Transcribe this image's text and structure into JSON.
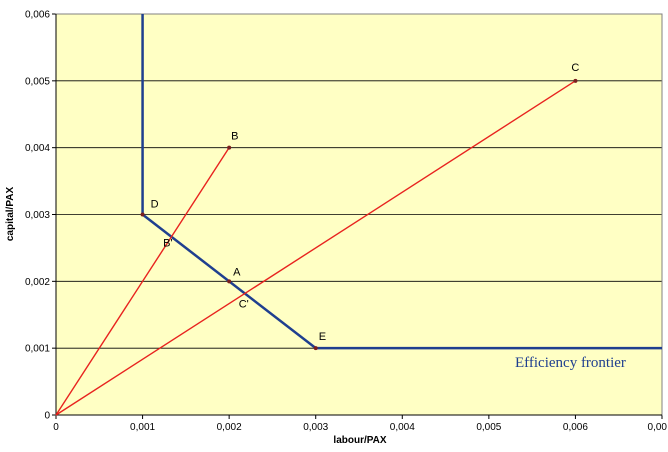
{
  "chart_data": {
    "type": "line",
    "xlabel": "labour/PAX",
    "ylabel": "capital/PAX",
    "xlim": [
      0,
      0.007
    ],
    "ylim": [
      0,
      0.006
    ],
    "x_ticks": [
      "0",
      "0,001",
      "0,002",
      "0,003",
      "0,004",
      "0,005",
      "0,006",
      "0,00"
    ],
    "y_ticks": [
      "0",
      "0,001",
      "0,002",
      "0,003",
      "0,004",
      "0,005",
      "0,006"
    ],
    "grid": "horizontal",
    "series": [
      {
        "name": "Efficiency frontier",
        "color": "#1f3f8f",
        "points": [
          [
            0.001,
            0.006
          ],
          [
            0.001,
            0.003
          ],
          [
            0.003,
            0.001
          ],
          [
            0.007,
            0.001
          ]
        ]
      },
      {
        "color": "#e8231f",
        "points": [
          [
            0,
            0
          ],
          [
            0.002,
            0.004
          ]
        ]
      },
      {
        "color": "#e8231f",
        "points": [
          [
            0,
            0
          ],
          [
            0.006,
            0.005
          ]
        ]
      }
    ],
    "labeled_points": [
      {
        "label": "B",
        "x": 0.002,
        "y": 0.004,
        "marker": true
      },
      {
        "label": "C",
        "x": 0.006,
        "y": 0.005,
        "marker": true
      },
      {
        "label": "D",
        "x": 0.001,
        "y": 0.003,
        "marker": true
      },
      {
        "label": "A",
        "x": 0.002,
        "y": 0.002,
        "marker": true
      },
      {
        "label": "E",
        "x": 0.003,
        "y": 0.001,
        "marker": true
      },
      {
        "label": "B'",
        "x": 0.00133,
        "y": 0.00267,
        "marker": false
      },
      {
        "label": "C'",
        "x": 0.00218,
        "y": 0.00182,
        "marker": false
      }
    ],
    "frontier_label": "Efficiency frontier"
  },
  "colors": {
    "plot_background": "#ffffc4",
    "frontier": "#1f3f8f",
    "rays": "#e8231f",
    "point_marker": "#7b1f1f"
  }
}
